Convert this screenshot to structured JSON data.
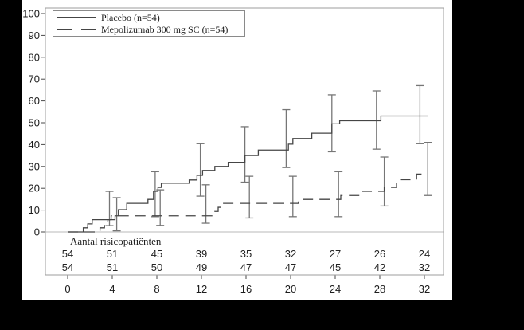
{
  "window": {
    "background": "#000000",
    "paper": "#ffffff"
  },
  "colors": {
    "curve": "#454545",
    "error_bar": "#767676",
    "frame": "#9c9c9c",
    "zero_line": "#b9b9b9",
    "tick": "#4a4a4a",
    "text": "#1c1c1c"
  },
  "chart_data": {
    "type": "line",
    "subtype": "kaplan-meier-step-cumulative-incidence",
    "title": "",
    "xlabel": "",
    "ylabel": "",
    "x_axis": {
      "ticks": [
        0,
        4,
        8,
        12,
        16,
        20,
        24,
        28,
        32
      ],
      "range": [
        -2,
        33.7
      ]
    },
    "y_axis": {
      "ticks": [
        0,
        10,
        20,
        30,
        40,
        50,
        60,
        70,
        80,
        90,
        100
      ],
      "range": [
        0,
        100
      ]
    },
    "grid": "off",
    "legend_position": "top-left-inside",
    "series": [
      {
        "name": "Placebo (n=54)",
        "line_style": "solid",
        "color": "#454545",
        "steps": [
          [
            0,
            0
          ],
          [
            1.4,
            1.9
          ],
          [
            1.8,
            3.7
          ],
          [
            2.2,
            5.6
          ],
          [
            4.25,
            7.4
          ],
          [
            4.55,
            10.2
          ],
          [
            5.3,
            13.1
          ],
          [
            7.2,
            14.9
          ],
          [
            7.7,
            18.6
          ],
          [
            8.1,
            20.4
          ],
          [
            8.4,
            22.3
          ],
          [
            10.9,
            23.8
          ],
          [
            11.6,
            25.9
          ],
          [
            12.1,
            28.2
          ],
          [
            13.2,
            30.0
          ],
          [
            14.4,
            31.9
          ],
          [
            15.9,
            35.0
          ],
          [
            17.1,
            37.5
          ],
          [
            19.8,
            40.2
          ],
          [
            20.2,
            42.8
          ],
          [
            21.9,
            45.2
          ],
          [
            23.7,
            49.5
          ],
          [
            24.4,
            50.9
          ],
          [
            28.1,
            53.1
          ]
        ],
        "end_t": 32.3,
        "error_bars": [
          [
            3.75,
            2.9,
            18.6
          ],
          [
            7.85,
            7.0,
            27.6
          ],
          [
            11.9,
            16.4,
            40.4
          ],
          [
            15.9,
            22.8,
            48.2
          ],
          [
            19.6,
            29.5,
            56.0
          ],
          [
            23.7,
            36.7,
            62.8
          ],
          [
            27.7,
            37.9,
            64.6
          ],
          [
            31.6,
            40.4,
            67.0
          ]
        ]
      },
      {
        "name": "Mepolizumab 300 mg SC (n=54)",
        "line_style": "dashed",
        "color": "#454545",
        "steps": [
          [
            0,
            0
          ],
          [
            2.9,
            1.9
          ],
          [
            3.3,
            3.7
          ],
          [
            3.6,
            5.6
          ],
          [
            3.9,
            7.4
          ],
          [
            13.2,
            9.4
          ],
          [
            13.5,
            11.3
          ],
          [
            13.8,
            13.1
          ],
          [
            20.7,
            14.9
          ],
          [
            24.5,
            16.7
          ],
          [
            26.2,
            18.6
          ],
          [
            28.4,
            20.4
          ],
          [
            29.5,
            23.9
          ],
          [
            31.3,
            26.5
          ]
        ],
        "end_t": 32.3,
        "error_bars": [
          [
            4.4,
            0.5,
            15.7
          ],
          [
            8.3,
            3.0,
            19.3
          ],
          [
            12.4,
            4.0,
            21.6
          ],
          [
            16.3,
            6.4,
            25.5
          ],
          [
            20.2,
            7.0,
            25.5
          ],
          [
            24.3,
            7.0,
            27.6
          ],
          [
            28.4,
            11.9,
            34.3
          ],
          [
            32.3,
            16.7,
            41.0
          ]
        ]
      }
    ],
    "risk_table": {
      "title": "Aantal risicopatiënten",
      "x_positions": [
        0,
        4,
        8,
        12,
        16,
        20,
        24,
        28,
        32
      ],
      "rows": [
        {
          "series": "Placebo (n=54)",
          "values": [
            54,
            51,
            45,
            39,
            35,
            32,
            27,
            26,
            24
          ]
        },
        {
          "series": "Mepolizumab 300 mg SC (n=54)",
          "values": [
            54,
            51,
            50,
            49,
            47,
            47,
            45,
            42,
            32
          ]
        }
      ]
    }
  }
}
